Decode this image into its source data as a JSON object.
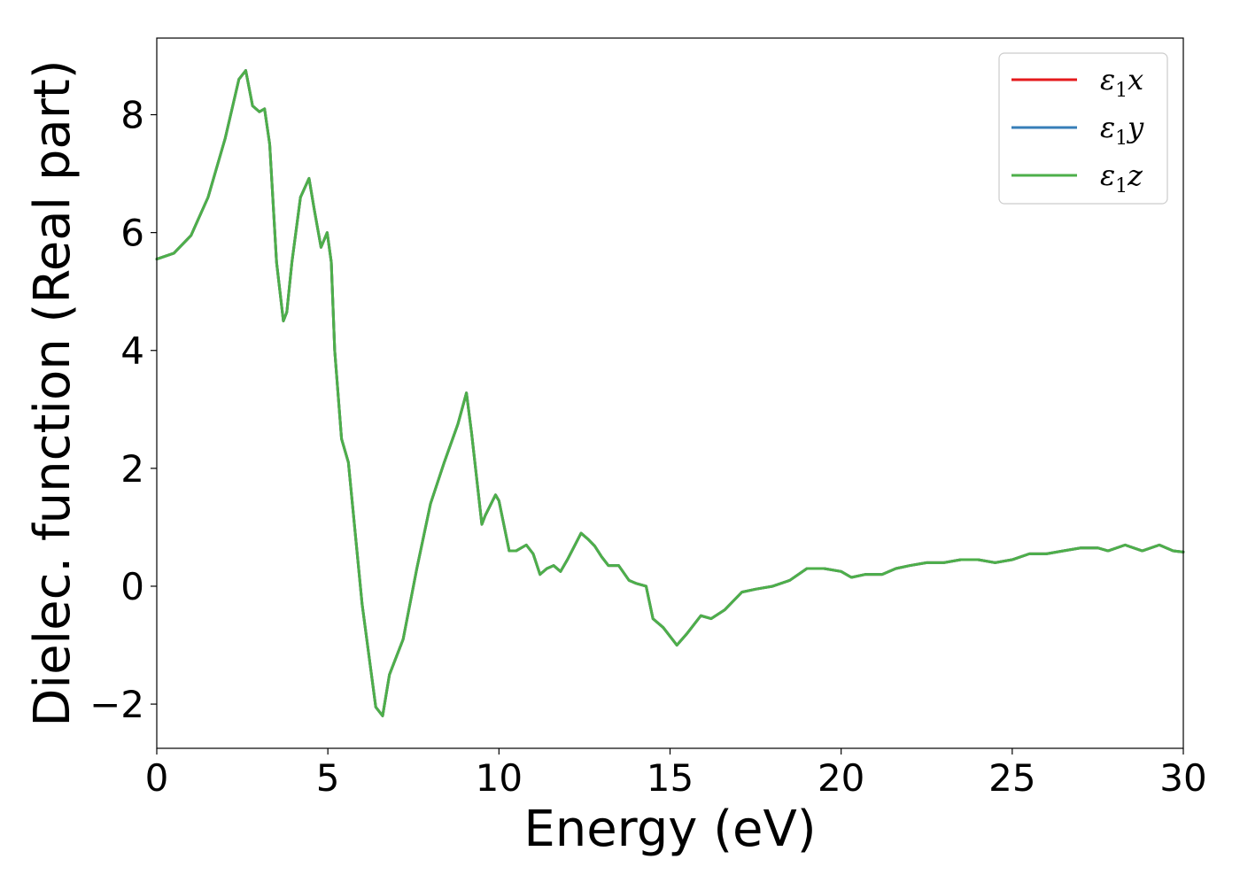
{
  "chart_data": {
    "type": "line",
    "xlabel": "Energy (eV)",
    "ylabel": "Dielec. function (Real part)",
    "xlim": [
      0,
      30
    ],
    "ylim": [
      -2.75,
      9.3
    ],
    "xticks": [
      0,
      5,
      10,
      15,
      20,
      25,
      30
    ],
    "xtick_labels": [
      "0",
      "5",
      "10",
      "15",
      "20",
      "25",
      "30"
    ],
    "yticks": [
      -2,
      0,
      2,
      4,
      6,
      8
    ],
    "ytick_labels": [
      "−2",
      "0",
      "2",
      "4",
      "6",
      "8"
    ],
    "grid": false,
    "legend_position": "top-right",
    "series": [
      {
        "name": "ε1x",
        "legend_symbol": "ε",
        "legend_subscript": "1",
        "legend_suffix": "x",
        "color": "#e41a1c",
        "x": [
          0,
          0.5,
          1.0,
          1.5,
          2.0,
          2.4,
          2.6,
          2.8,
          3.0,
          3.15,
          3.3,
          3.5,
          3.7,
          3.8,
          3.95,
          4.2,
          4.45,
          4.6,
          4.8,
          4.98,
          5.1,
          5.2,
          5.4,
          5.6,
          6.0,
          6.4,
          6.6,
          6.8,
          7.0,
          7.2,
          7.6,
          8.0,
          8.4,
          8.8,
          9.05,
          9.2,
          9.5,
          9.6,
          9.9,
          10.0,
          10.3,
          10.5,
          10.8,
          11.0,
          11.2,
          11.4,
          11.6,
          11.8,
          12.0,
          12.4,
          12.6,
          12.8,
          13.0,
          13.2,
          13.5,
          13.8,
          14.0,
          14.3,
          14.5,
          14.8,
          15.2,
          15.5,
          15.9,
          16.2,
          16.6,
          17.1,
          17.5,
          18.0,
          18.5,
          19.0,
          19.5,
          20.0,
          20.3,
          20.7,
          21.2,
          21.6,
          22.0,
          22.5,
          23.0,
          23.5,
          24.0,
          24.5,
          25.0,
          25.5,
          26.0,
          26.5,
          27.0,
          27.5,
          27.8,
          28.3,
          28.8,
          29.3,
          29.7,
          30.0
        ],
        "y": [
          5.55,
          5.65,
          5.95,
          6.6,
          7.6,
          8.6,
          8.75,
          8.15,
          8.05,
          8.1,
          7.5,
          5.5,
          4.5,
          4.65,
          5.5,
          6.6,
          6.92,
          6.4,
          5.75,
          6.0,
          5.5,
          4.0,
          2.5,
          2.1,
          -0.3,
          -2.05,
          -2.2,
          -1.5,
          -1.2,
          -0.9,
          0.3,
          1.4,
          2.1,
          2.75,
          3.28,
          2.6,
          1.05,
          1.2,
          1.55,
          1.45,
          0.6,
          0.6,
          0.7,
          0.55,
          0.2,
          0.3,
          0.35,
          0.25,
          0.45,
          0.9,
          0.8,
          0.68,
          0.5,
          0.35,
          0.35,
          0.1,
          0.05,
          0.0,
          -0.55,
          -0.7,
          -1.0,
          -0.8,
          -0.5,
          -0.55,
          -0.4,
          -0.1,
          -0.05,
          0.0,
          0.1,
          0.3,
          0.3,
          0.25,
          0.15,
          0.2,
          0.2,
          0.3,
          0.35,
          0.4,
          0.4,
          0.45,
          0.45,
          0.4,
          0.45,
          0.55,
          0.55,
          0.6,
          0.65,
          0.65,
          0.6,
          0.7,
          0.6,
          0.7,
          0.6,
          0.58
        ]
      },
      {
        "name": "ε1y",
        "legend_symbol": "ε",
        "legend_subscript": "1",
        "legend_suffix": "y",
        "color": "#377eb8",
        "x": [
          0,
          0.5,
          1.0,
          1.5,
          2.0,
          2.4,
          2.6,
          2.8,
          3.0,
          3.15,
          3.3,
          3.5,
          3.7,
          3.8,
          3.95,
          4.2,
          4.45,
          4.6,
          4.8,
          4.98,
          5.1,
          5.2,
          5.4,
          5.6,
          6.0,
          6.4,
          6.6,
          6.8,
          7.0,
          7.2,
          7.6,
          8.0,
          8.4,
          8.8,
          9.05,
          9.2,
          9.5,
          9.6,
          9.9,
          10.0,
          10.3,
          10.5,
          10.8,
          11.0,
          11.2,
          11.4,
          11.6,
          11.8,
          12.0,
          12.4,
          12.6,
          12.8,
          13.0,
          13.2,
          13.5,
          13.8,
          14.0,
          14.3,
          14.5,
          14.8,
          15.2,
          15.5,
          15.9,
          16.2,
          16.6,
          17.1,
          17.5,
          18.0,
          18.5,
          19.0,
          19.5,
          20.0,
          20.3,
          20.7,
          21.2,
          21.6,
          22.0,
          22.5,
          23.0,
          23.5,
          24.0,
          24.5,
          25.0,
          25.5,
          26.0,
          26.5,
          27.0,
          27.5,
          27.8,
          28.3,
          28.8,
          29.3,
          29.7,
          30.0
        ],
        "y": [
          5.55,
          5.65,
          5.95,
          6.6,
          7.6,
          8.6,
          8.75,
          8.15,
          8.05,
          8.1,
          7.5,
          5.5,
          4.5,
          4.65,
          5.5,
          6.6,
          6.92,
          6.4,
          5.75,
          6.0,
          5.5,
          4.0,
          2.5,
          2.1,
          -0.3,
          -2.05,
          -2.2,
          -1.5,
          -1.2,
          -0.9,
          0.3,
          1.4,
          2.1,
          2.75,
          3.28,
          2.6,
          1.05,
          1.2,
          1.55,
          1.45,
          0.6,
          0.6,
          0.7,
          0.55,
          0.2,
          0.3,
          0.35,
          0.25,
          0.45,
          0.9,
          0.8,
          0.68,
          0.5,
          0.35,
          0.35,
          0.1,
          0.05,
          0.0,
          -0.55,
          -0.7,
          -1.0,
          -0.8,
          -0.5,
          -0.55,
          -0.4,
          -0.1,
          -0.05,
          0.0,
          0.1,
          0.3,
          0.3,
          0.25,
          0.15,
          0.2,
          0.2,
          0.3,
          0.35,
          0.4,
          0.4,
          0.45,
          0.45,
          0.4,
          0.45,
          0.55,
          0.55,
          0.6,
          0.65,
          0.65,
          0.6,
          0.7,
          0.6,
          0.7,
          0.6,
          0.58
        ]
      },
      {
        "name": "ε1z",
        "legend_symbol": "ε",
        "legend_subscript": "1",
        "legend_suffix": "z",
        "color": "#4daf4a",
        "x": [
          0,
          0.5,
          1.0,
          1.5,
          2.0,
          2.4,
          2.6,
          2.8,
          3.0,
          3.15,
          3.3,
          3.5,
          3.7,
          3.8,
          3.95,
          4.2,
          4.45,
          4.6,
          4.8,
          4.98,
          5.1,
          5.2,
          5.4,
          5.6,
          6.0,
          6.4,
          6.6,
          6.8,
          7.0,
          7.2,
          7.6,
          8.0,
          8.4,
          8.8,
          9.05,
          9.2,
          9.5,
          9.6,
          9.9,
          10.0,
          10.3,
          10.5,
          10.8,
          11.0,
          11.2,
          11.4,
          11.6,
          11.8,
          12.0,
          12.4,
          12.6,
          12.8,
          13.0,
          13.2,
          13.5,
          13.8,
          14.0,
          14.3,
          14.5,
          14.8,
          15.2,
          15.5,
          15.9,
          16.2,
          16.6,
          17.1,
          17.5,
          18.0,
          18.5,
          19.0,
          19.5,
          20.0,
          20.3,
          20.7,
          21.2,
          21.6,
          22.0,
          22.5,
          23.0,
          23.5,
          24.0,
          24.5,
          25.0,
          25.5,
          26.0,
          26.5,
          27.0,
          27.5,
          27.8,
          28.3,
          28.8,
          29.3,
          29.7,
          30.0
        ],
        "y": [
          5.55,
          5.65,
          5.95,
          6.6,
          7.6,
          8.6,
          8.75,
          8.15,
          8.05,
          8.1,
          7.5,
          5.5,
          4.5,
          4.65,
          5.5,
          6.6,
          6.92,
          6.4,
          5.75,
          6.0,
          5.5,
          4.0,
          2.5,
          2.1,
          -0.3,
          -2.05,
          -2.2,
          -1.5,
          -1.2,
          -0.9,
          0.3,
          1.4,
          2.1,
          2.75,
          3.28,
          2.6,
          1.05,
          1.2,
          1.55,
          1.45,
          0.6,
          0.6,
          0.7,
          0.55,
          0.2,
          0.3,
          0.35,
          0.25,
          0.45,
          0.9,
          0.8,
          0.68,
          0.5,
          0.35,
          0.35,
          0.1,
          0.05,
          0.0,
          -0.55,
          -0.7,
          -1.0,
          -0.8,
          -0.5,
          -0.55,
          -0.4,
          -0.1,
          -0.05,
          0.0,
          0.1,
          0.3,
          0.3,
          0.25,
          0.15,
          0.2,
          0.2,
          0.3,
          0.35,
          0.4,
          0.4,
          0.45,
          0.45,
          0.4,
          0.45,
          0.55,
          0.55,
          0.6,
          0.65,
          0.65,
          0.6,
          0.7,
          0.6,
          0.7,
          0.6,
          0.58
        ]
      }
    ]
  }
}
